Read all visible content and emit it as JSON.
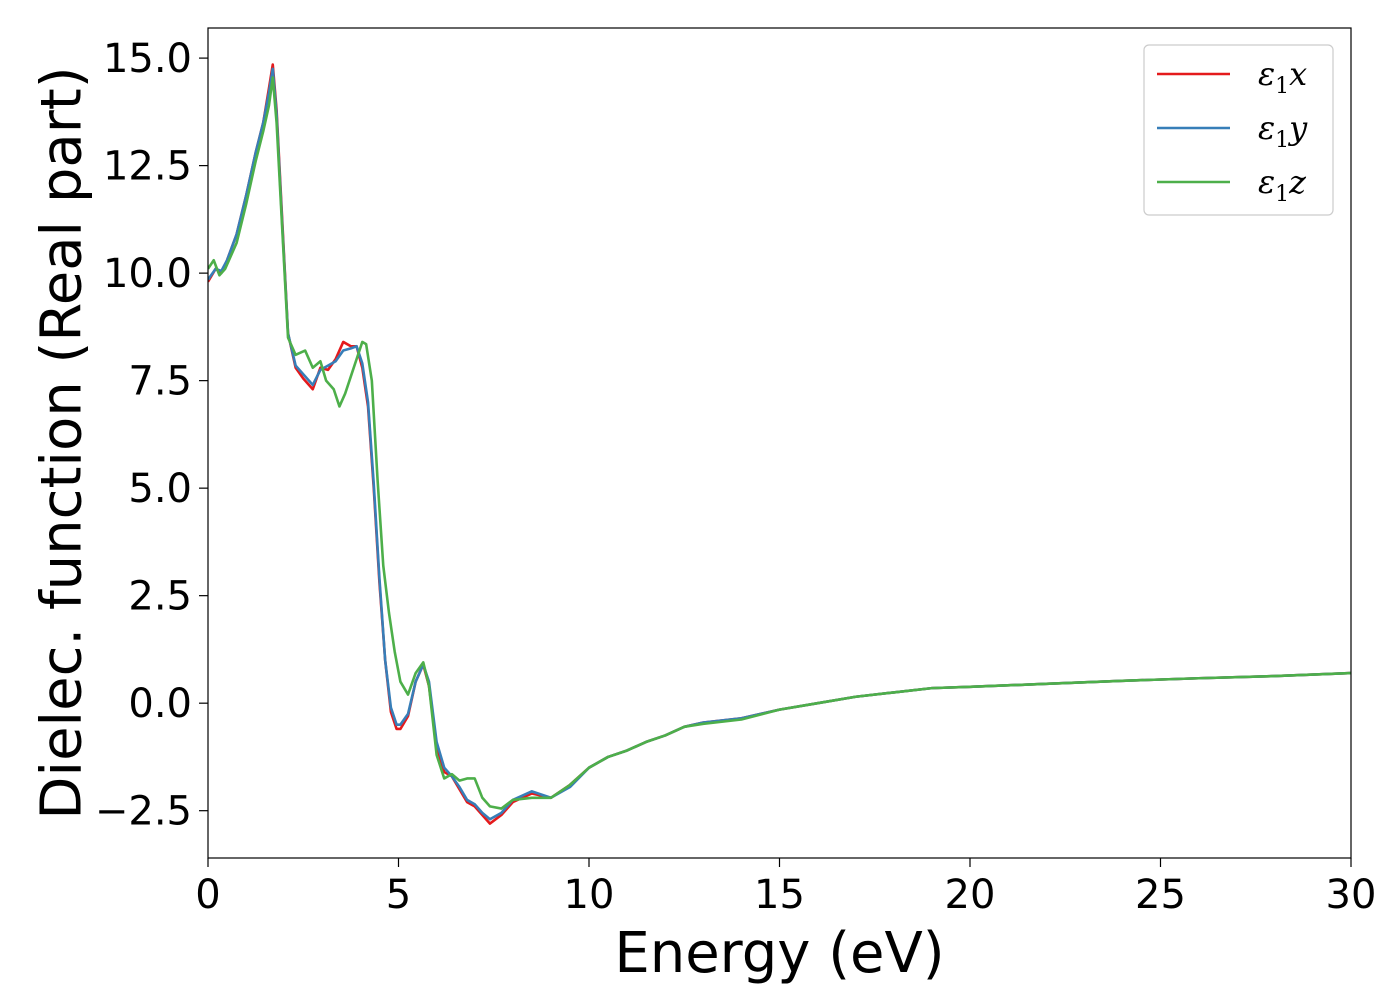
{
  "chart_data": {
    "type": "line",
    "title": "",
    "xlabel": "Energy (eV)",
    "ylabel": "Dielec. function (Real part)",
    "xlim": [
      0,
      30
    ],
    "ylim": [
      -3.6,
      15.7
    ],
    "grid": false,
    "legend_position": "top-right",
    "x_ticks": [
      0,
      5,
      10,
      15,
      20,
      25,
      30
    ],
    "x_tick_labels": [
      "0",
      "5",
      "10",
      "15",
      "20",
      "25",
      "30"
    ],
    "y_ticks": [
      -2.5,
      0.0,
      2.5,
      5.0,
      7.5,
      10.0,
      12.5,
      15.0
    ],
    "y_tick_labels": [
      "−2.5",
      "0.0",
      "2.5",
      "5.0",
      "7.5",
      "10.0",
      "12.5",
      "15.0"
    ],
    "series": [
      {
        "name": "ε₁x",
        "name_main": "ε",
        "name_sub": "1",
        "name_tail": "x",
        "color": "#e41a1c",
        "x": [
          0,
          0.2,
          0.35,
          0.5,
          0.75,
          1.0,
          1.25,
          1.45,
          1.6,
          1.7,
          1.8,
          1.95,
          2.1,
          2.3,
          2.5,
          2.75,
          2.95,
          3.15,
          3.35,
          3.55,
          3.75,
          3.9,
          4.05,
          4.2,
          4.35,
          4.5,
          4.65,
          4.8,
          4.95,
          5.05,
          5.25,
          5.45,
          5.65,
          5.8,
          6.0,
          6.2,
          6.4,
          6.6,
          6.8,
          7.0,
          7.2,
          7.4,
          7.7,
          8.0,
          8.5,
          9.0,
          9.5,
          10.0,
          10.5,
          11.0,
          11.5,
          12.0,
          12.5,
          13.0,
          14.0,
          15.0,
          16.0,
          17.0,
          18.0,
          19.0,
          20.0,
          22.0,
          24.0,
          26.0,
          28.0,
          30.0
        ],
        "values": [
          9.8,
          10.1,
          10.0,
          10.3,
          10.9,
          11.8,
          12.8,
          13.5,
          14.3,
          14.85,
          13.8,
          11.2,
          8.6,
          7.8,
          7.55,
          7.3,
          7.8,
          7.75,
          8.0,
          8.4,
          8.3,
          8.3,
          7.8,
          6.9,
          5.0,
          2.8,
          1.0,
          -0.2,
          -0.6,
          -0.6,
          -0.3,
          0.5,
          0.9,
          0.4,
          -1.0,
          -1.6,
          -1.7,
          -2.0,
          -2.3,
          -2.4,
          -2.6,
          -2.8,
          -2.6,
          -2.3,
          -2.1,
          -2.2,
          -1.9,
          -1.5,
          -1.25,
          -1.1,
          -0.9,
          -0.75,
          -0.55,
          -0.45,
          -0.35,
          -0.15,
          0.0,
          0.15,
          0.25,
          0.35,
          0.38,
          0.45,
          0.52,
          0.58,
          0.63,
          0.7
        ]
      },
      {
        "name": "ε₁y",
        "name_main": "ε",
        "name_sub": "1",
        "name_tail": "y",
        "color": "#377eb8",
        "x": [
          0,
          0.2,
          0.35,
          0.5,
          0.75,
          1.0,
          1.25,
          1.45,
          1.6,
          1.7,
          1.8,
          1.95,
          2.1,
          2.3,
          2.5,
          2.75,
          2.95,
          3.15,
          3.35,
          3.55,
          3.75,
          3.9,
          4.05,
          4.2,
          4.35,
          4.5,
          4.65,
          4.8,
          4.95,
          5.05,
          5.25,
          5.45,
          5.65,
          5.8,
          6.0,
          6.2,
          6.4,
          6.6,
          6.8,
          7.0,
          7.2,
          7.4,
          7.7,
          8.0,
          8.5,
          9.0,
          9.5,
          10.0,
          10.5,
          11.0,
          11.5,
          12.0,
          12.5,
          13.0,
          14.0,
          15.0,
          16.0,
          17.0,
          18.0,
          19.0,
          20.0,
          22.0,
          24.0,
          26.0,
          28.0,
          30.0
        ],
        "values": [
          9.85,
          10.1,
          10.05,
          10.3,
          10.9,
          11.8,
          12.8,
          13.5,
          14.2,
          14.75,
          13.7,
          11.1,
          8.6,
          7.85,
          7.65,
          7.4,
          7.75,
          7.85,
          7.95,
          8.2,
          8.25,
          8.3,
          7.9,
          7.0,
          5.1,
          2.9,
          1.0,
          -0.1,
          -0.5,
          -0.5,
          -0.25,
          0.5,
          0.9,
          0.5,
          -0.9,
          -1.5,
          -1.7,
          -1.95,
          -2.25,
          -2.35,
          -2.55,
          -2.7,
          -2.55,
          -2.25,
          -2.05,
          -2.2,
          -1.95,
          -1.5,
          -1.25,
          -1.1,
          -0.9,
          -0.75,
          -0.55,
          -0.45,
          -0.35,
          -0.15,
          0.0,
          0.15,
          0.25,
          0.35,
          0.38,
          0.45,
          0.52,
          0.58,
          0.63,
          0.7
        ]
      },
      {
        "name": "ε₁z",
        "name_main": "ε",
        "name_sub": "1",
        "name_tail": "z",
        "color": "#4daf4a",
        "x": [
          0,
          0.15,
          0.3,
          0.45,
          0.75,
          1.0,
          1.25,
          1.45,
          1.6,
          1.7,
          1.8,
          1.95,
          2.1,
          2.3,
          2.55,
          2.75,
          2.95,
          3.1,
          3.3,
          3.45,
          3.6,
          3.75,
          3.9,
          4.05,
          4.15,
          4.3,
          4.45,
          4.6,
          4.75,
          4.9,
          5.05,
          5.25,
          5.45,
          5.65,
          5.8,
          6.0,
          6.2,
          6.4,
          6.6,
          6.8,
          7.0,
          7.2,
          7.4,
          7.7,
          8.0,
          8.5,
          9.0,
          9.5,
          10.0,
          10.5,
          11.0,
          11.5,
          12.0,
          12.5,
          13.0,
          14.0,
          15.0,
          16.0,
          17.0,
          18.0,
          19.0,
          20.0,
          22.0,
          24.0,
          26.0,
          28.0,
          30.0
        ],
        "values": [
          10.1,
          10.3,
          9.95,
          10.1,
          10.7,
          11.6,
          12.6,
          13.3,
          13.9,
          14.55,
          13.5,
          11.0,
          8.5,
          8.1,
          8.2,
          7.8,
          7.95,
          7.5,
          7.3,
          6.9,
          7.2,
          7.6,
          8.0,
          8.4,
          8.35,
          7.5,
          5.2,
          3.2,
          2.1,
          1.2,
          0.5,
          0.2,
          0.7,
          0.95,
          0.4,
          -1.2,
          -1.75,
          -1.65,
          -1.8,
          -1.75,
          -1.75,
          -2.2,
          -2.4,
          -2.45,
          -2.25,
          -2.2,
          -2.2,
          -1.9,
          -1.5,
          -1.25,
          -1.1,
          -0.9,
          -0.75,
          -0.55,
          -0.48,
          -0.38,
          -0.15,
          0.0,
          0.15,
          0.25,
          0.35,
          0.38,
          0.45,
          0.52,
          0.58,
          0.63,
          0.7
        ]
      }
    ]
  }
}
